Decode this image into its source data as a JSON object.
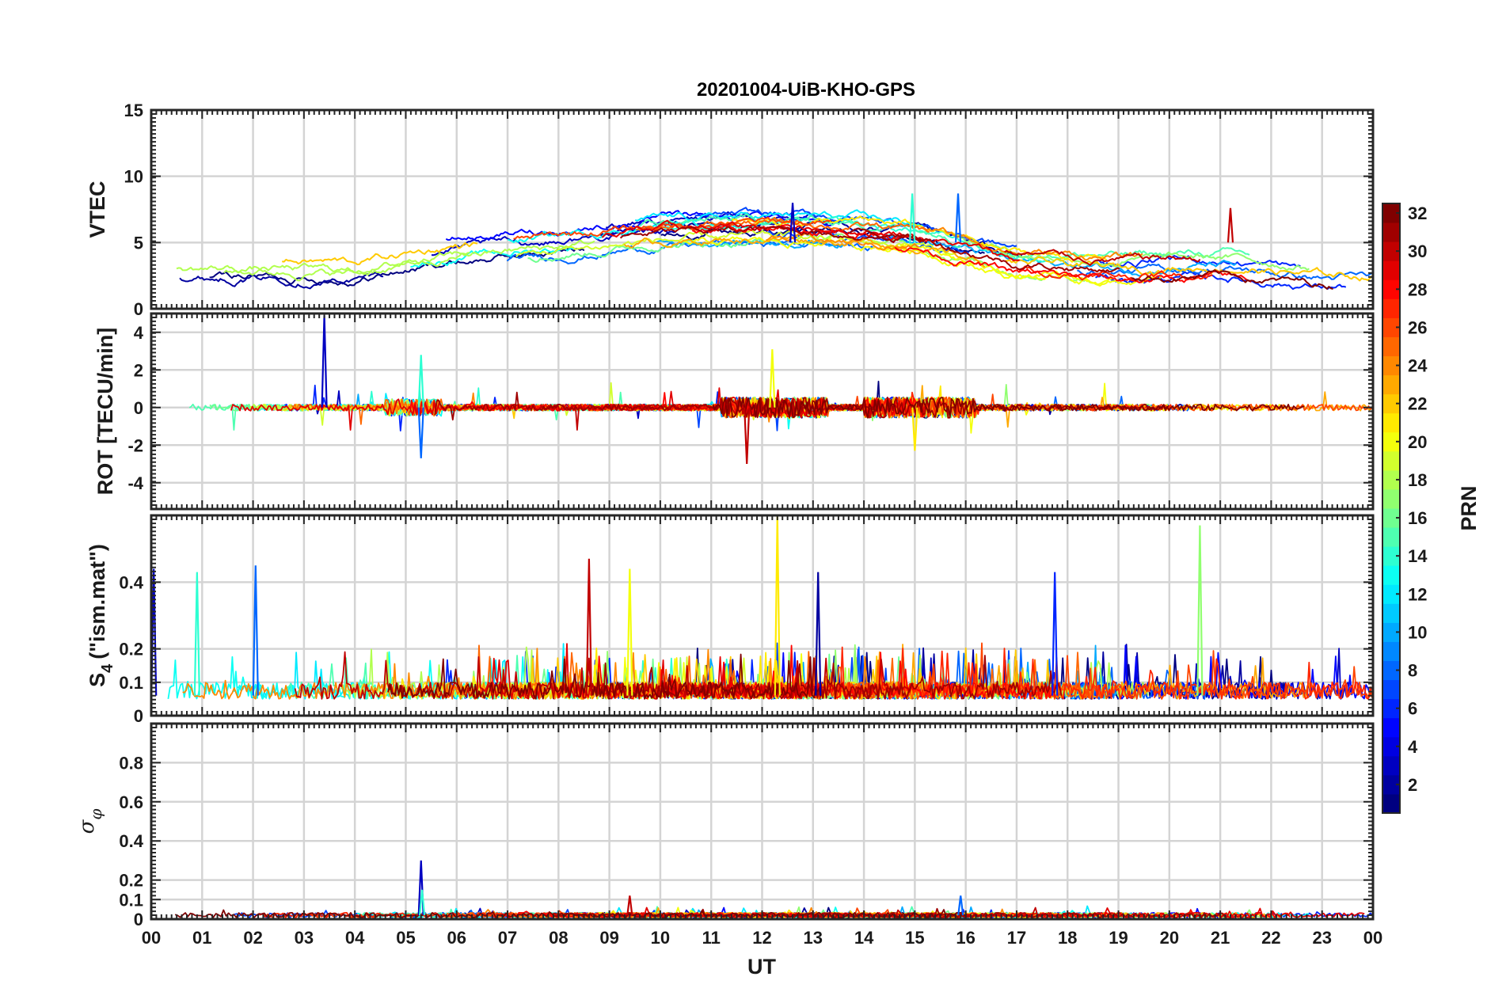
{
  "chart_data": {
    "type": "line",
    "title": "20201004-UiB-KHO-GPS",
    "xlabel": "UT",
    "xlim": [
      0,
      24
    ],
    "x_ticks": [
      "00",
      "01",
      "02",
      "03",
      "04",
      "05",
      "06",
      "07",
      "08",
      "09",
      "10",
      "11",
      "12",
      "13",
      "14",
      "15",
      "16",
      "17",
      "18",
      "19",
      "20",
      "21",
      "22",
      "23",
      "00"
    ],
    "grid": true,
    "colorbar": {
      "label": "PRN",
      "range": [
        1,
        32
      ],
      "ticks": [
        "2",
        "4",
        "6",
        "8",
        "10",
        "12",
        "14",
        "16",
        "18",
        "20",
        "22",
        "24",
        "26",
        "28",
        "30",
        "32"
      ],
      "colormap": "jet",
      "stops": [
        "#00008f",
        "#0000ff",
        "#0080ff",
        "#00ffff",
        "#80ff80",
        "#ffff00",
        "#ff8000",
        "#ff0000",
        "#800000"
      ]
    },
    "panels": [
      {
        "id": "vtec",
        "ylabel": "VTEC",
        "ylim": [
          0,
          15
        ],
        "y_ticks": [
          "0",
          "5",
          "10",
          "15"
        ],
        "y_tick_values": [
          0,
          5,
          10,
          15
        ],
        "series_desc": "VTEC per PRN, mostly 2–7 TECU; maximum ~8.7 at 15 UT and ~8.7 near 16 UT",
        "peaks": [
          {
            "x": 12.6,
            "y": 8
          },
          {
            "x": 14.95,
            "y": 8.7
          },
          {
            "x": 15.85,
            "y": 8.7
          },
          {
            "x": 21.2,
            "y": 7.6
          }
        ],
        "mean_envelope": {
          "x": [
            0,
            2,
            4,
            6,
            8,
            10,
            12,
            13,
            15,
            17,
            19,
            21,
            23,
            24
          ],
          "y": [
            3,
            3.2,
            3,
            4.3,
            5,
            5.8,
            6,
            6,
            5.5,
            3.5,
            3,
            3.2,
            2.5,
            2.5
          ]
        }
      },
      {
        "id": "rot",
        "ylabel": "ROT [TECU/min]",
        "ylim": [
          -5.4,
          5
        ],
        "y_ticks": [
          "-4",
          "-2",
          "0",
          "2",
          "4"
        ],
        "y_tick_values": [
          -4,
          -2,
          0,
          2,
          4
        ],
        "series_desc": "Rate of TEC per PRN around 0; spikes up to 4.9 near 03.4 UT",
        "peaks": [
          {
            "x": 3.4,
            "y": 4.9
          },
          {
            "x": 5.3,
            "y": 2.8
          },
          {
            "x": 5.3,
            "y": -2.7
          },
          {
            "x": 11.7,
            "y": -3
          },
          {
            "x": 12.2,
            "y": 3.1
          },
          {
            "x": 15.0,
            "y": -2.3
          }
        ]
      },
      {
        "id": "s4",
        "ylabel": "S4 (\"ism.mat\")",
        "ylabel_main": "S",
        "ylabel_sub": "4",
        "ylabel_rest": "(\"ism.mat\")",
        "ylim": [
          0,
          0.6
        ],
        "y_ticks": [
          "0",
          "0.1",
          "0.2",
          "0.4"
        ],
        "y_tick_values": [
          0,
          0.1,
          0.2,
          0.4
        ],
        "series_desc": "S4 amplitude scintillation per PRN, baseline 0.05–0.1; max ~0.6 at 12.3 UT",
        "peaks": [
          {
            "x": 0.05,
            "y": 0.44
          },
          {
            "x": 0.9,
            "y": 0.43
          },
          {
            "x": 2.05,
            "y": 0.45
          },
          {
            "x": 8.6,
            "y": 0.47
          },
          {
            "x": 9.4,
            "y": 0.44
          },
          {
            "x": 12.3,
            "y": 0.6
          },
          {
            "x": 13.1,
            "y": 0.43
          },
          {
            "x": 17.75,
            "y": 0.43
          },
          {
            "x": 20.6,
            "y": 0.57
          }
        ]
      },
      {
        "id": "sigma_phi",
        "ylabel": "σφ",
        "ylabel_main": "σ",
        "ylabel_sub": "φ",
        "ylim": [
          0,
          1
        ],
        "y_ticks": [
          "0",
          "0.1",
          "0.2",
          "0.4",
          "0.6",
          "0.8"
        ],
        "y_tick_values": [
          0,
          0.1,
          0.2,
          0.4,
          0.6,
          0.8
        ],
        "series_desc": "Phase scintillation per PRN near 0.02; spike 0.3 at 05.3 UT",
        "peaks": [
          {
            "x": 5.3,
            "y": 0.3
          },
          {
            "x": 5.32,
            "y": 0.15
          },
          {
            "x": 15.9,
            "y": 0.12
          },
          {
            "x": 9.4,
            "y": 0.12
          }
        ]
      }
    ]
  }
}
